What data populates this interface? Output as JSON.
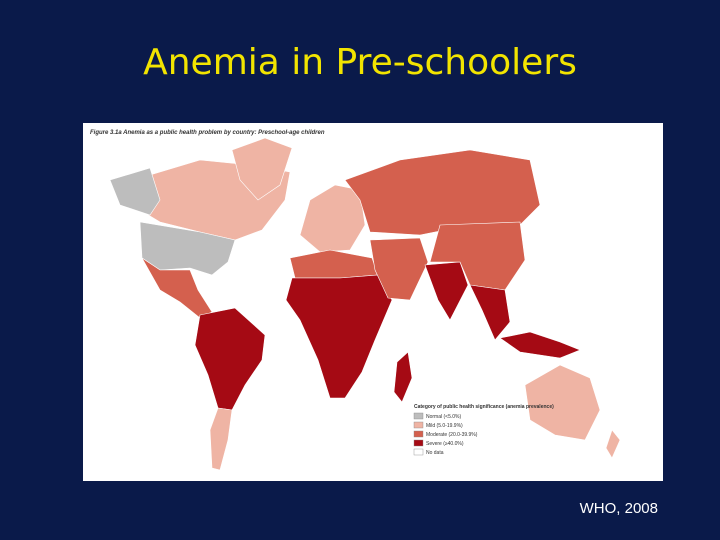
{
  "header": {
    "title": "Anemia in Pre-schoolers"
  },
  "figure": {
    "caption": "Figure 3.1a   Anemia as a public health problem by country: Preschool-age children",
    "legend": {
      "title": "Category of public health significance (anemia prevalence)",
      "items": [
        {
          "label": "Normal (<5.0%)",
          "color": "#bdbdbd"
        },
        {
          "label": "Mild (5.0-19.9%)",
          "color": "#efb4a4"
        },
        {
          "label": "Moderate (20.0-39.9%)",
          "color": "#d4604e"
        },
        {
          "label": "Severe (≥40.0%)",
          "color": "#a50a14"
        },
        {
          "label": "No data",
          "color": "#ffffff"
        }
      ]
    }
  },
  "footer": {
    "source": "WHO, 2008"
  }
}
